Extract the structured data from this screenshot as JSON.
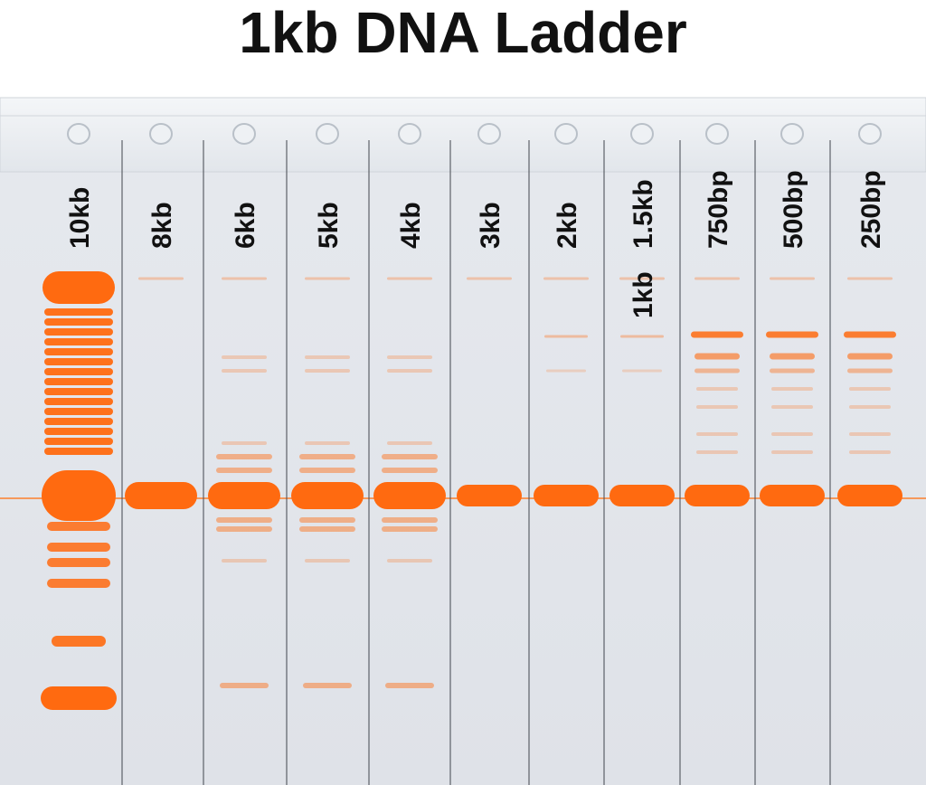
{
  "title": "1kb DNA Ladder",
  "lanes": [
    "10kb",
    "8kb",
    "6kb",
    "5kb",
    "4kb",
    "3kb",
    "2kb",
    "1.5kb",
    "750bp",
    "500bp",
    "250bp"
  ],
  "overlay_label": "1kb"
}
